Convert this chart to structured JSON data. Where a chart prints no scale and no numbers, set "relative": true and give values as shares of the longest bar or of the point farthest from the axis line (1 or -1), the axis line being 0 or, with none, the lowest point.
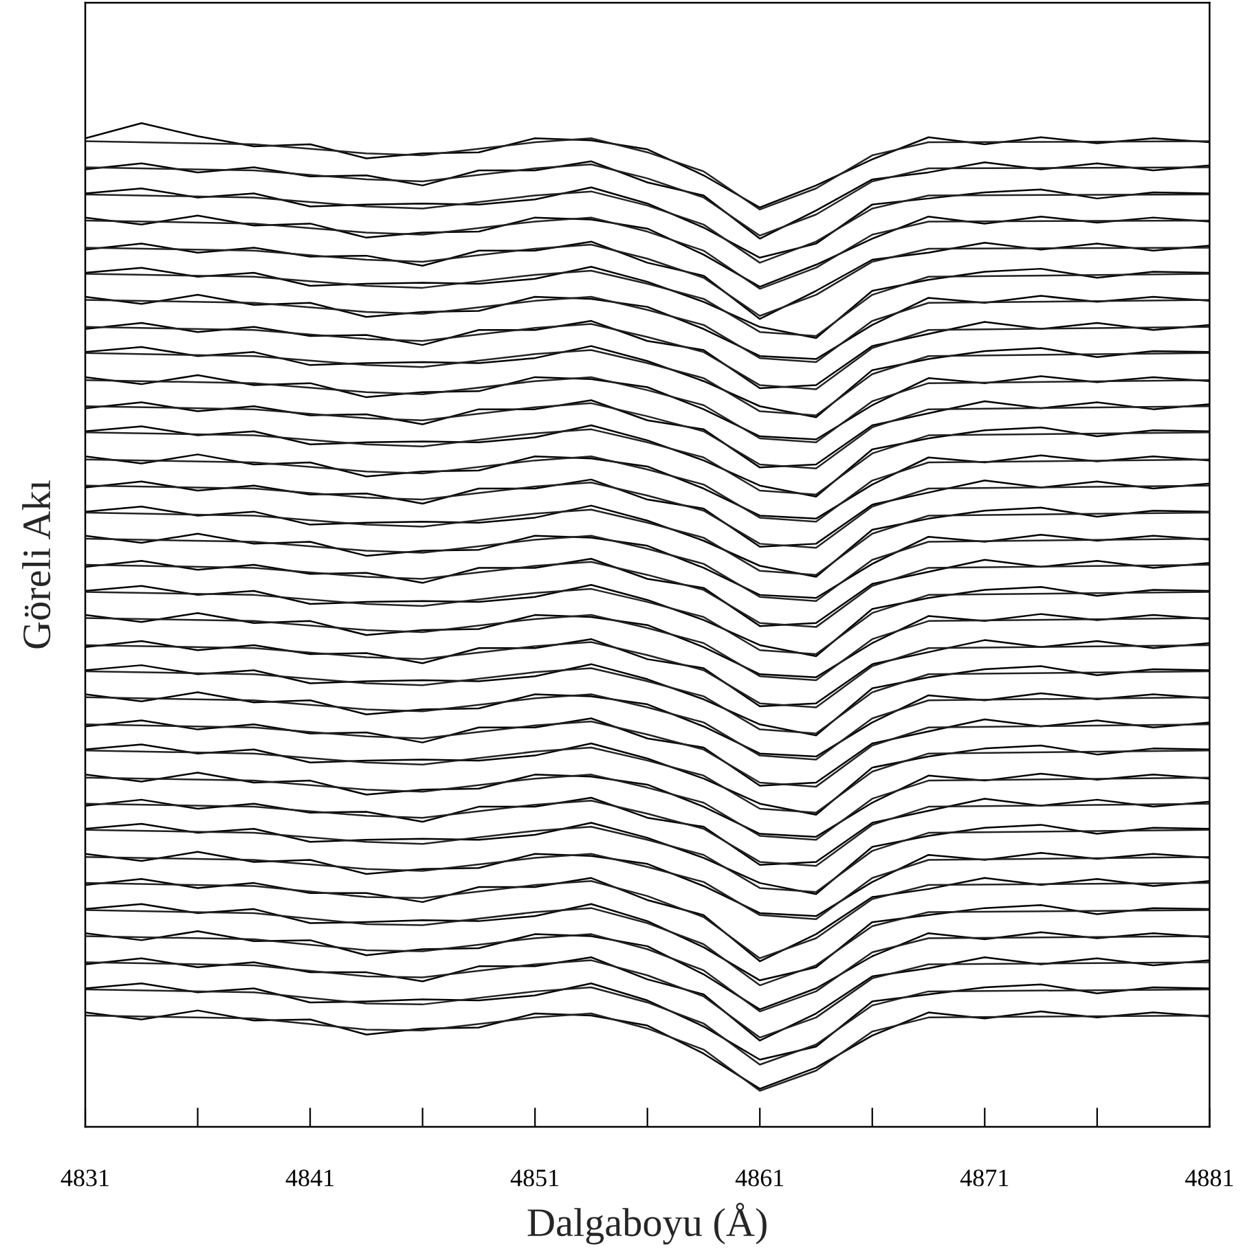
{
  "chart_data": {
    "type": "line",
    "relative": true,
    "xlabel": "Dalgaboyu (Å)",
    "ylabel": "Göreli Akı",
    "xlim": [
      4831,
      4881
    ],
    "xticks": [
      4831,
      {
        "value": 4836,
        "label": null
      },
      4841,
      {
        "value": 4846,
        "label": null
      },
      4851,
      {
        "value": 4856,
        "label": null
      },
      4861,
      {
        "value": 4866,
        "label": null
      },
      4871,
      {
        "value": 4876,
        "label": null
      },
      4881
    ],
    "tick_labels": "x",
    "x": [
      4831,
      4833.5,
      4836,
      4838.5,
      4841,
      4843.5,
      4846,
      4848.5,
      4851,
      4853.5,
      4856,
      4858.5,
      4861,
      4863.5,
      4866,
      4868.5,
      4871,
      4873.5,
      4876,
      4878.5,
      4881
    ],
    "series": [
      {
        "color": "#000000",
        "values": [
          0.985,
          1.0,
          0.987,
          0.977,
          0.979,
          0.965,
          0.97,
          0.971,
          0.985,
          0.983,
          0.974,
          0.948,
          0.916,
          0.938,
          0.964,
          0.986,
          0.979,
          0.986,
          0.98,
          0.985,
          0.981
        ]
      },
      {
        "color": "#000000",
        "values": [
          0.954,
          0.96,
          0.951,
          0.956,
          0.947,
          0.948,
          0.938,
          0.953,
          0.953,
          0.962,
          0.941,
          0.928,
          0.885,
          0.913,
          0.944,
          0.951,
          0.961,
          0.954,
          0.96,
          0.953,
          0.958
        ]
      },
      {
        "color": "#000000",
        "values": [
          0.93,
          0.935,
          0.926,
          0.93,
          0.917,
          0.919,
          0.92,
          0.919,
          0.924,
          0.936,
          0.92,
          0.896,
          0.866,
          0.88,
          0.919,
          0.925,
          0.931,
          0.934,
          0.925,
          0.931,
          0.93
        ]
      },
      {
        "color": "#000000",
        "values": [
          0.906,
          0.899,
          0.908,
          0.898,
          0.9,
          0.886,
          0.891,
          0.892,
          0.906,
          0.904,
          0.895,
          0.869,
          0.837,
          0.859,
          0.885,
          0.907,
          0.9,
          0.907,
          0.901,
          0.906,
          0.902
        ]
      },
      {
        "color": "#000000",
        "values": [
          0.874,
          0.88,
          0.871,
          0.876,
          0.867,
          0.868,
          0.858,
          0.873,
          0.873,
          0.882,
          0.861,
          0.848,
          0.805,
          0.833,
          0.864,
          0.871,
          0.881,
          0.874,
          0.88,
          0.873,
          0.878
        ]
      },
      {
        "color": "#000000",
        "values": [
          0.851,
          0.856,
          0.847,
          0.851,
          0.838,
          0.84,
          0.841,
          0.84,
          0.845,
          0.857,
          0.842,
          0.822,
          0.797,
          0.786,
          0.833,
          0.844,
          0.852,
          0.855,
          0.846,
          0.852,
          0.851
        ]
      },
      {
        "color": "#000000",
        "values": [
          0.827,
          0.82,
          0.829,
          0.819,
          0.821,
          0.807,
          0.812,
          0.813,
          0.827,
          0.825,
          0.817,
          0.795,
          0.768,
          0.765,
          0.799,
          0.826,
          0.821,
          0.828,
          0.822,
          0.827,
          0.823
        ]
      },
      {
        "color": "#000000",
        "values": [
          0.795,
          0.801,
          0.792,
          0.797,
          0.788,
          0.789,
          0.779,
          0.794,
          0.794,
          0.803,
          0.783,
          0.774,
          0.736,
          0.739,
          0.778,
          0.79,
          0.802,
          0.795,
          0.801,
          0.794,
          0.799
        ]
      },
      {
        "color": "#000000",
        "values": [
          0.772,
          0.777,
          0.768,
          0.772,
          0.759,
          0.761,
          0.762,
          0.761,
          0.766,
          0.778,
          0.763,
          0.743,
          0.718,
          0.707,
          0.754,
          0.765,
          0.773,
          0.776,
          0.767,
          0.773,
          0.772
        ]
      },
      {
        "color": "#000000",
        "values": [
          0.747,
          0.74,
          0.749,
          0.739,
          0.741,
          0.727,
          0.732,
          0.733,
          0.747,
          0.745,
          0.737,
          0.715,
          0.688,
          0.685,
          0.719,
          0.746,
          0.741,
          0.748,
          0.742,
          0.747,
          0.743
        ]
      },
      {
        "color": "#000000",
        "values": [
          0.716,
          0.722,
          0.713,
          0.718,
          0.709,
          0.71,
          0.7,
          0.715,
          0.715,
          0.724,
          0.704,
          0.695,
          0.657,
          0.66,
          0.699,
          0.711,
          0.723,
          0.716,
          0.722,
          0.715,
          0.72
        ]
      },
      {
        "color": "#000000",
        "values": [
          0.693,
          0.698,
          0.689,
          0.693,
          0.68,
          0.682,
          0.683,
          0.682,
          0.687,
          0.699,
          0.684,
          0.664,
          0.639,
          0.628,
          0.675,
          0.686,
          0.694,
          0.697,
          0.688,
          0.694,
          0.693
        ]
      },
      {
        "color": "#000000",
        "values": [
          0.668,
          0.661,
          0.67,
          0.66,
          0.662,
          0.648,
          0.653,
          0.654,
          0.668,
          0.666,
          0.658,
          0.636,
          0.609,
          0.606,
          0.64,
          0.667,
          0.662,
          0.669,
          0.663,
          0.668,
          0.664
        ]
      },
      {
        "color": "#000000",
        "values": [
          0.637,
          0.643,
          0.634,
          0.639,
          0.63,
          0.631,
          0.621,
          0.636,
          0.636,
          0.645,
          0.625,
          0.616,
          0.578,
          0.581,
          0.62,
          0.632,
          0.644,
          0.637,
          0.643,
          0.636,
          0.641
        ]
      },
      {
        "color": "#000000",
        "values": [
          0.613,
          0.618,
          0.609,
          0.613,
          0.6,
          0.602,
          0.603,
          0.602,
          0.607,
          0.619,
          0.604,
          0.584,
          0.559,
          0.548,
          0.595,
          0.606,
          0.614,
          0.617,
          0.608,
          0.614,
          0.613
        ]
      },
      {
        "color": "#000000",
        "values": [
          0.589,
          0.582,
          0.591,
          0.581,
          0.583,
          0.569,
          0.574,
          0.575,
          0.589,
          0.587,
          0.579,
          0.557,
          0.53,
          0.527,
          0.561,
          0.588,
          0.583,
          0.59,
          0.584,
          0.589,
          0.585
        ]
      },
      {
        "color": "#000000",
        "values": [
          0.558,
          0.564,
          0.555,
          0.56,
          0.551,
          0.552,
          0.542,
          0.557,
          0.557,
          0.566,
          0.546,
          0.537,
          0.499,
          0.502,
          0.541,
          0.553,
          0.565,
          0.558,
          0.564,
          0.557,
          0.562
        ]
      },
      {
        "color": "#000000",
        "values": [
          0.534,
          0.539,
          0.53,
          0.534,
          0.521,
          0.523,
          0.524,
          0.523,
          0.528,
          0.54,
          0.525,
          0.505,
          0.48,
          0.469,
          0.516,
          0.527,
          0.535,
          0.538,
          0.529,
          0.535,
          0.534
        ]
      },
      {
        "color": "#000000",
        "values": [
          0.51,
          0.503,
          0.512,
          0.502,
          0.504,
          0.49,
          0.495,
          0.496,
          0.51,
          0.508,
          0.5,
          0.478,
          0.451,
          0.448,
          0.482,
          0.509,
          0.504,
          0.511,
          0.505,
          0.51,
          0.506
        ]
      },
      {
        "color": "#000000",
        "values": [
          0.478,
          0.484,
          0.475,
          0.48,
          0.471,
          0.472,
          0.462,
          0.477,
          0.477,
          0.486,
          0.466,
          0.457,
          0.419,
          0.422,
          0.461,
          0.473,
          0.485,
          0.478,
          0.484,
          0.477,
          0.482
        ]
      },
      {
        "color": "#000000",
        "values": [
          0.455,
          0.46,
          0.451,
          0.455,
          0.442,
          0.444,
          0.445,
          0.444,
          0.449,
          0.461,
          0.446,
          0.426,
          0.401,
          0.39,
          0.437,
          0.448,
          0.456,
          0.459,
          0.45,
          0.456,
          0.455
        ]
      },
      {
        "color": "#000000",
        "values": [
          0.431,
          0.424,
          0.433,
          0.423,
          0.425,
          0.411,
          0.416,
          0.417,
          0.431,
          0.429,
          0.421,
          0.399,
          0.372,
          0.369,
          0.403,
          0.43,
          0.425,
          0.432,
          0.426,
          0.431,
          0.427
        ]
      },
      {
        "color": "#000000",
        "values": [
          0.399,
          0.405,
          0.396,
          0.401,
          0.392,
          0.393,
          0.383,
          0.398,
          0.398,
          0.407,
          0.387,
          0.378,
          0.34,
          0.343,
          0.382,
          0.394,
          0.406,
          0.399,
          0.405,
          0.398,
          0.403
        ]
      },
      {
        "color": "#000000",
        "values": [
          0.376,
          0.381,
          0.372,
          0.376,
          0.363,
          0.365,
          0.366,
          0.365,
          0.37,
          0.382,
          0.367,
          0.347,
          0.322,
          0.311,
          0.358,
          0.369,
          0.377,
          0.38,
          0.371,
          0.377,
          0.376
        ]
      },
      {
        "color": "#000000",
        "values": [
          0.351,
          0.344,
          0.353,
          0.343,
          0.345,
          0.331,
          0.336,
          0.337,
          0.351,
          0.349,
          0.341,
          0.319,
          0.292,
          0.289,
          0.323,
          0.35,
          0.345,
          0.352,
          0.346,
          0.351,
          0.347
        ]
      },
      {
        "color": "#000000",
        "values": [
          0.32,
          0.326,
          0.317,
          0.322,
          0.313,
          0.314,
          0.304,
          0.319,
          0.319,
          0.328,
          0.308,
          0.299,
          0.261,
          0.264,
          0.303,
          0.315,
          0.327,
          0.32,
          0.326,
          0.319,
          0.324
        ]
      },
      {
        "color": "#000000",
        "values": [
          0.297,
          0.302,
          0.293,
          0.297,
          0.284,
          0.286,
          0.287,
          0.286,
          0.291,
          0.303,
          0.288,
          0.268,
          0.243,
          0.232,
          0.279,
          0.29,
          0.298,
          0.301,
          0.292,
          0.298,
          0.297
        ]
      },
      {
        "color": "#000000",
        "values": [
          0.272,
          0.265,
          0.274,
          0.264,
          0.266,
          0.252,
          0.257,
          0.258,
          0.272,
          0.27,
          0.262,
          0.24,
          0.213,
          0.21,
          0.244,
          0.271,
          0.266,
          0.273,
          0.267,
          0.272,
          0.268
        ]
      },
      {
        "color": "#000000",
        "values": [
          0.241,
          0.247,
          0.238,
          0.243,
          0.233,
          0.233,
          0.224,
          0.239,
          0.239,
          0.248,
          0.226,
          0.211,
          0.165,
          0.192,
          0.229,
          0.237,
          0.248,
          0.241,
          0.247,
          0.24,
          0.245
        ]
      },
      {
        "color": "#000000",
        "values": [
          0.217,
          0.222,
          0.213,
          0.217,
          0.203,
          0.204,
          0.206,
          0.205,
          0.21,
          0.222,
          0.205,
          0.179,
          0.146,
          0.159,
          0.204,
          0.211,
          0.218,
          0.221,
          0.212,
          0.218,
          0.217
        ]
      },
      {
        "color": "#000000",
        "values": [
          0.193,
          0.186,
          0.195,
          0.185,
          0.186,
          0.171,
          0.177,
          0.178,
          0.192,
          0.19,
          0.18,
          0.152,
          0.117,
          0.138,
          0.17,
          0.193,
          0.187,
          0.194,
          0.188,
          0.193,
          0.189
        ]
      },
      {
        "color": "#000000",
        "values": [
          0.162,
          0.168,
          0.159,
          0.164,
          0.154,
          0.154,
          0.145,
          0.16,
          0.16,
          0.169,
          0.147,
          0.132,
          0.086,
          0.113,
          0.15,
          0.158,
          0.169,
          0.162,
          0.168,
          0.161,
          0.166
        ]
      },
      {
        "color": "#000000",
        "values": [
          0.138,
          0.143,
          0.134,
          0.138,
          0.124,
          0.125,
          0.127,
          0.126,
          0.131,
          0.143,
          0.126,
          0.1,
          0.067,
          0.08,
          0.125,
          0.132,
          0.139,
          0.142,
          0.133,
          0.139,
          0.138
        ]
      },
      {
        "color": "#000000",
        "values": [
          0.114,
          0.107,
          0.116,
          0.106,
          0.107,
          0.092,
          0.098,
          0.099,
          0.113,
          0.111,
          0.101,
          0.073,
          0.038,
          0.059,
          0.091,
          0.114,
          0.108,
          0.115,
          0.109,
          0.114,
          0.11
        ]
      },
      {
        "color": "#222222",
        "x": [
          4831,
          4838.5,
          4843.5,
          4846,
          4851,
          4853.5,
          4856,
          4858.5,
          4861,
          4863.5,
          4866,
          4868.5,
          4881
        ],
        "values": [
          0.982,
          0.979,
          0.97,
          0.968,
          0.981,
          0.985,
          0.971,
          0.952,
          0.914,
          0.935,
          0.968,
          0.981,
          0.982
        ]
      },
      {
        "color": "#222222",
        "x": [
          4831,
          4838.5,
          4843.5,
          4846,
          4851,
          4853.5,
          4856,
          4858.5,
          4861,
          4863.5,
          4866,
          4868.5,
          4881
        ],
        "values": [
          0.956,
          0.953,
          0.944,
          0.942,
          0.955,
          0.959,
          0.945,
          0.926,
          0.888,
          0.909,
          0.942,
          0.955,
          0.956
        ]
      },
      {
        "color": "#222222",
        "x": [
          4831,
          4838.5,
          4843.5,
          4846,
          4851,
          4853.5,
          4856,
          4858.5,
          4861,
          4863.5,
          4866,
          4868.5,
          4881
        ],
        "values": [
          0.929,
          0.926,
          0.917,
          0.915,
          0.928,
          0.932,
          0.918,
          0.899,
          0.861,
          0.882,
          0.915,
          0.928,
          0.929
        ]
      },
      {
        "color": "#222222",
        "x": [
          4831,
          4838.5,
          4843.5,
          4846,
          4851,
          4853.5,
          4856,
          4858.5,
          4861,
          4863.5,
          4866,
          4868.5,
          4881
        ],
        "values": [
          0.903,
          0.9,
          0.891,
          0.889,
          0.902,
          0.906,
          0.892,
          0.873,
          0.835,
          0.856,
          0.889,
          0.902,
          0.903
        ]
      },
      {
        "color": "#222222",
        "x": [
          4831,
          4838.5,
          4843.5,
          4846,
          4851,
          4853.5,
          4856,
          4858.5,
          4861,
          4863.5,
          4866,
          4868.5,
          4881
        ],
        "values": [
          0.876,
          0.873,
          0.864,
          0.862,
          0.875,
          0.879,
          0.865,
          0.846,
          0.808,
          0.829,
          0.862,
          0.875,
          0.876
        ]
      },
      {
        "color": "#222222",
        "x": [
          4831,
          4838.5,
          4843.5,
          4846,
          4851,
          4853.5,
          4856,
          4858.5,
          4861,
          4863.5,
          4866,
          4868.5,
          4881
        ],
        "values": [
          0.85,
          0.847,
          0.838,
          0.836,
          0.849,
          0.853,
          0.84,
          0.825,
          0.792,
          0.788,
          0.829,
          0.847,
          0.85
        ]
      },
      {
        "color": "#222222",
        "x": [
          4831,
          4838.5,
          4843.5,
          4846,
          4851,
          4853.5,
          4856,
          4858.5,
          4861,
          4863.5,
          4866,
          4868.5,
          4881
        ],
        "values": [
          0.824,
          0.821,
          0.812,
          0.81,
          0.823,
          0.827,
          0.814,
          0.799,
          0.766,
          0.762,
          0.803,
          0.821,
          0.824
        ]
      },
      {
        "color": "#222222",
        "x": [
          4831,
          4838.5,
          4843.5,
          4846,
          4851,
          4853.5,
          4856,
          4858.5,
          4861,
          4863.5,
          4866,
          4868.5,
          4881
        ],
        "values": [
          0.797,
          0.794,
          0.785,
          0.783,
          0.796,
          0.8,
          0.787,
          0.772,
          0.739,
          0.735,
          0.776,
          0.794,
          0.797
        ]
      },
      {
        "color": "#222222",
        "x": [
          4831,
          4838.5,
          4843.5,
          4846,
          4851,
          4853.5,
          4856,
          4858.5,
          4861,
          4863.5,
          4866,
          4868.5,
          4881
        ],
        "values": [
          0.771,
          0.768,
          0.759,
          0.757,
          0.77,
          0.774,
          0.761,
          0.746,
          0.713,
          0.709,
          0.75,
          0.768,
          0.771
        ]
      },
      {
        "color": "#222222",
        "x": [
          4831,
          4838.5,
          4843.5,
          4846,
          4851,
          4853.5,
          4856,
          4858.5,
          4861,
          4863.5,
          4866,
          4868.5,
          4881
        ],
        "values": [
          0.744,
          0.741,
          0.732,
          0.73,
          0.743,
          0.747,
          0.734,
          0.719,
          0.686,
          0.682,
          0.723,
          0.741,
          0.744
        ]
      },
      {
        "color": "#222222",
        "x": [
          4831,
          4838.5,
          4843.5,
          4846,
          4851,
          4853.5,
          4856,
          4858.5,
          4861,
          4863.5,
          4866,
          4868.5,
          4881
        ],
        "values": [
          0.718,
          0.715,
          0.706,
          0.704,
          0.717,
          0.721,
          0.708,
          0.693,
          0.66,
          0.656,
          0.697,
          0.715,
          0.718
        ]
      },
      {
        "color": "#222222",
        "x": [
          4831,
          4838.5,
          4843.5,
          4846,
          4851,
          4853.5,
          4856,
          4858.5,
          4861,
          4863.5,
          4866,
          4868.5,
          4881
        ],
        "values": [
          0.692,
          0.689,
          0.68,
          0.678,
          0.691,
          0.695,
          0.682,
          0.667,
          0.634,
          0.63,
          0.671,
          0.689,
          0.692
        ]
      },
      {
        "color": "#222222",
        "x": [
          4831,
          4838.5,
          4843.5,
          4846,
          4851,
          4853.5,
          4856,
          4858.5,
          4861,
          4863.5,
          4866,
          4868.5,
          4881
        ],
        "values": [
          0.665,
          0.662,
          0.653,
          0.651,
          0.664,
          0.668,
          0.655,
          0.64,
          0.607,
          0.603,
          0.644,
          0.662,
          0.665
        ]
      },
      {
        "color": "#222222",
        "x": [
          4831,
          4838.5,
          4843.5,
          4846,
          4851,
          4853.5,
          4856,
          4858.5,
          4861,
          4863.5,
          4866,
          4868.5,
          4881
        ],
        "values": [
          0.639,
          0.636,
          0.627,
          0.625,
          0.638,
          0.642,
          0.629,
          0.614,
          0.581,
          0.577,
          0.618,
          0.636,
          0.639
        ]
      },
      {
        "color": "#222222",
        "x": [
          4831,
          4838.5,
          4843.5,
          4846,
          4851,
          4853.5,
          4856,
          4858.5,
          4861,
          4863.5,
          4866,
          4868.5,
          4881
        ],
        "values": [
          0.612,
          0.609,
          0.6,
          0.598,
          0.611,
          0.615,
          0.602,
          0.587,
          0.554,
          0.55,
          0.591,
          0.609,
          0.612
        ]
      },
      {
        "color": "#222222",
        "x": [
          4831,
          4838.5,
          4843.5,
          4846,
          4851,
          4853.5,
          4856,
          4858.5,
          4861,
          4863.5,
          4866,
          4868.5,
          4881
        ],
        "values": [
          0.586,
          0.583,
          0.574,
          0.572,
          0.585,
          0.589,
          0.576,
          0.561,
          0.528,
          0.524,
          0.565,
          0.583,
          0.586
        ]
      },
      {
        "color": "#222222",
        "x": [
          4831,
          4838.5,
          4843.5,
          4846,
          4851,
          4853.5,
          4856,
          4858.5,
          4861,
          4863.5,
          4866,
          4868.5,
          4881
        ],
        "values": [
          0.56,
          0.557,
          0.548,
          0.546,
          0.559,
          0.563,
          0.55,
          0.535,
          0.502,
          0.498,
          0.539,
          0.557,
          0.56
        ]
      },
      {
        "color": "#222222",
        "x": [
          4831,
          4838.5,
          4843.5,
          4846,
          4851,
          4853.5,
          4856,
          4858.5,
          4861,
          4863.5,
          4866,
          4868.5,
          4881
        ],
        "values": [
          0.533,
          0.53,
          0.521,
          0.519,
          0.532,
          0.536,
          0.523,
          0.508,
          0.475,
          0.471,
          0.512,
          0.53,
          0.533
        ]
      },
      {
        "color": "#222222",
        "x": [
          4831,
          4838.5,
          4843.5,
          4846,
          4851,
          4853.5,
          4856,
          4858.5,
          4861,
          4863.5,
          4866,
          4868.5,
          4881
        ],
        "values": [
          0.507,
          0.504,
          0.495,
          0.493,
          0.506,
          0.51,
          0.497,
          0.482,
          0.449,
          0.445,
          0.486,
          0.504,
          0.507
        ]
      },
      {
        "color": "#222222",
        "x": [
          4831,
          4838.5,
          4843.5,
          4846,
          4851,
          4853.5,
          4856,
          4858.5,
          4861,
          4863.5,
          4866,
          4868.5,
          4881
        ],
        "values": [
          0.48,
          0.477,
          0.468,
          0.466,
          0.479,
          0.483,
          0.47,
          0.455,
          0.422,
          0.418,
          0.459,
          0.477,
          0.48
        ]
      },
      {
        "color": "#222222",
        "x": [
          4831,
          4838.5,
          4843.5,
          4846,
          4851,
          4853.5,
          4856,
          4858.5,
          4861,
          4863.5,
          4866,
          4868.5,
          4881
        ],
        "values": [
          0.454,
          0.451,
          0.442,
          0.44,
          0.453,
          0.457,
          0.444,
          0.429,
          0.396,
          0.392,
          0.433,
          0.451,
          0.454
        ]
      },
      {
        "color": "#222222",
        "x": [
          4831,
          4838.5,
          4843.5,
          4846,
          4851,
          4853.5,
          4856,
          4858.5,
          4861,
          4863.5,
          4866,
          4868.5,
          4881
        ],
        "values": [
          0.428,
          0.425,
          0.416,
          0.414,
          0.427,
          0.431,
          0.418,
          0.403,
          0.37,
          0.366,
          0.407,
          0.425,
          0.428
        ]
      },
      {
        "color": "#222222",
        "x": [
          4831,
          4838.5,
          4843.5,
          4846,
          4851,
          4853.5,
          4856,
          4858.5,
          4861,
          4863.5,
          4866,
          4868.5,
          4881
        ],
        "values": [
          0.401,
          0.398,
          0.389,
          0.387,
          0.4,
          0.404,
          0.391,
          0.376,
          0.343,
          0.339,
          0.38,
          0.398,
          0.401
        ]
      },
      {
        "color": "#222222",
        "x": [
          4831,
          4838.5,
          4843.5,
          4846,
          4851,
          4853.5,
          4856,
          4858.5,
          4861,
          4863.5,
          4866,
          4868.5,
          4881
        ],
        "values": [
          0.375,
          0.372,
          0.363,
          0.361,
          0.374,
          0.378,
          0.365,
          0.35,
          0.317,
          0.313,
          0.354,
          0.372,
          0.375
        ]
      },
      {
        "color": "#222222",
        "x": [
          4831,
          4838.5,
          4843.5,
          4846,
          4851,
          4853.5,
          4856,
          4858.5,
          4861,
          4863.5,
          4866,
          4868.5,
          4881
        ],
        "values": [
          0.348,
          0.345,
          0.336,
          0.334,
          0.347,
          0.351,
          0.338,
          0.323,
          0.29,
          0.286,
          0.327,
          0.345,
          0.348
        ]
      },
      {
        "color": "#222222",
        "x": [
          4831,
          4838.5,
          4843.5,
          4846,
          4851,
          4853.5,
          4856,
          4858.5,
          4861,
          4863.5,
          4866,
          4868.5,
          4881
        ],
        "values": [
          0.322,
          0.319,
          0.31,
          0.308,
          0.321,
          0.325,
          0.312,
          0.297,
          0.264,
          0.26,
          0.301,
          0.319,
          0.322
        ]
      },
      {
        "color": "#222222",
        "x": [
          4831,
          4838.5,
          4843.5,
          4846,
          4851,
          4853.5,
          4856,
          4858.5,
          4861,
          4863.5,
          4866,
          4868.5,
          4881
        ],
        "values": [
          0.296,
          0.293,
          0.284,
          0.282,
          0.295,
          0.299,
          0.286,
          0.271,
          0.238,
          0.234,
          0.275,
          0.293,
          0.296
        ]
      },
      {
        "color": "#222222",
        "x": [
          4831,
          4838.5,
          4843.5,
          4846,
          4851,
          4853.5,
          4856,
          4858.5,
          4861,
          4863.5,
          4866,
          4868.5,
          4881
        ],
        "values": [
          0.269,
          0.266,
          0.257,
          0.255,
          0.268,
          0.272,
          0.259,
          0.244,
          0.211,
          0.207,
          0.248,
          0.266,
          0.269
        ]
      },
      {
        "color": "#222222",
        "x": [
          4831,
          4838.5,
          4843.5,
          4846,
          4851,
          4853.5,
          4856,
          4858.5,
          4861,
          4863.5,
          4866,
          4868.5,
          4881
        ],
        "values": [
          0.243,
          0.24,
          0.229,
          0.228,
          0.241,
          0.245,
          0.23,
          0.209,
          0.168,
          0.188,
          0.227,
          0.241,
          0.243
        ]
      },
      {
        "color": "#222222",
        "x": [
          4831,
          4838.5,
          4843.5,
          4846,
          4851,
          4853.5,
          4856,
          4858.5,
          4861,
          4863.5,
          4866,
          4868.5,
          4881
        ],
        "values": [
          0.216,
          0.213,
          0.202,
          0.201,
          0.214,
          0.218,
          0.203,
          0.182,
          0.141,
          0.161,
          0.2,
          0.214,
          0.216
        ]
      },
      {
        "color": "#222222",
        "x": [
          4831,
          4838.5,
          4843.5,
          4846,
          4851,
          4853.5,
          4856,
          4858.5,
          4861,
          4863.5,
          4866,
          4868.5,
          4881
        ],
        "values": [
          0.19,
          0.187,
          0.176,
          0.175,
          0.188,
          0.192,
          0.177,
          0.156,
          0.115,
          0.135,
          0.174,
          0.188,
          0.19
        ]
      },
      {
        "color": "#222222",
        "x": [
          4831,
          4838.5,
          4843.5,
          4846,
          4851,
          4853.5,
          4856,
          4858.5,
          4861,
          4863.5,
          4866,
          4868.5,
          4881
        ],
        "values": [
          0.164,
          0.161,
          0.15,
          0.149,
          0.162,
          0.166,
          0.151,
          0.13,
          0.089,
          0.109,
          0.148,
          0.162,
          0.164
        ]
      },
      {
        "color": "#222222",
        "x": [
          4831,
          4838.5,
          4843.5,
          4846,
          4851,
          4853.5,
          4856,
          4858.5,
          4861,
          4863.5,
          4866,
          4868.5,
          4881
        ],
        "values": [
          0.137,
          0.134,
          0.123,
          0.122,
          0.135,
          0.139,
          0.124,
          0.103,
          0.062,
          0.082,
          0.121,
          0.135,
          0.137
        ]
      },
      {
        "color": "#222222",
        "x": [
          4831,
          4838.5,
          4843.5,
          4846,
          4851,
          4853.5,
          4856,
          4858.5,
          4861,
          4863.5,
          4866,
          4868.5,
          4881
        ],
        "values": [
          0.111,
          0.108,
          0.097,
          0.096,
          0.109,
          0.113,
          0.098,
          0.077,
          0.036,
          0.056,
          0.095,
          0.109,
          0.111
        ]
      }
    ]
  }
}
